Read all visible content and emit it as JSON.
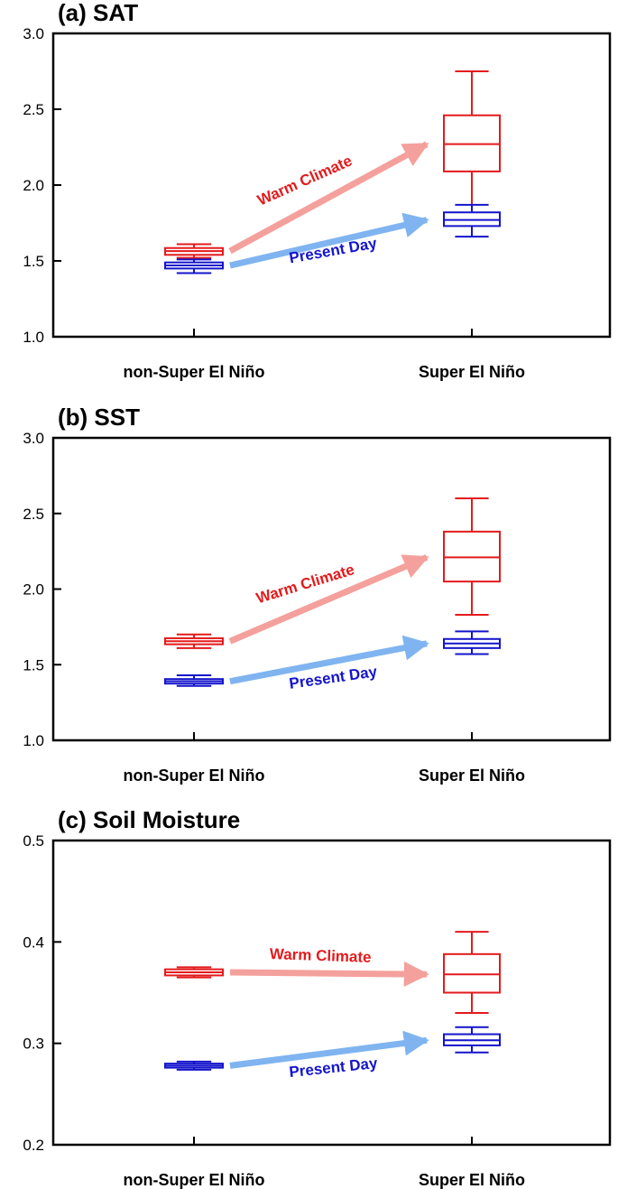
{
  "chart_data": [
    {
      "type": "box",
      "title": "(a)  SAT",
      "categories": [
        "non-Super El Niño",
        "Super El Niño"
      ],
      "ylim": [
        1.0,
        3.0
      ],
      "yticks": [
        "1.0",
        "1.5",
        "2.0",
        "2.5",
        "3.0"
      ],
      "series": [
        {
          "name": "Warm Climate",
          "color": "#e41a1c",
          "arrow_color": "#f4a09c",
          "boxes": [
            {
              "whisker_low": 1.52,
              "q1": 1.54,
              "median": 1.565,
              "q3": 1.585,
              "whisker_high": 1.61
            },
            {
              "whisker_low": 1.81,
              "q1": 2.09,
              "median": 2.27,
              "q3": 2.46,
              "whisker_high": 2.75
            }
          ]
        },
        {
          "name": "Present Day",
          "color": "#1414cc",
          "arrow_color": "#7fb4f0",
          "boxes": [
            {
              "whisker_low": 1.42,
              "q1": 1.45,
              "median": 1.47,
              "q3": 1.49,
              "whisker_high": 1.51
            },
            {
              "whisker_low": 1.66,
              "q1": 1.73,
              "median": 1.77,
              "q3": 1.82,
              "whisker_high": 1.87
            }
          ]
        }
      ]
    },
    {
      "type": "box",
      "title": "(b)  SST",
      "categories": [
        "non-Super El Niño",
        "Super El Niño"
      ],
      "ylim": [
        1.0,
        3.0
      ],
      "yticks": [
        "1.0",
        "1.5",
        "2.0",
        "2.5",
        "3.0"
      ],
      "series": [
        {
          "name": "Warm Climate",
          "color": "#e41a1c",
          "arrow_color": "#f4a09c",
          "boxes": [
            {
              "whisker_low": 1.61,
              "q1": 1.635,
              "median": 1.655,
              "q3": 1.675,
              "whisker_high": 1.7
            },
            {
              "whisker_low": 1.83,
              "q1": 2.05,
              "median": 2.21,
              "q3": 2.38,
              "whisker_high": 2.6
            }
          ]
        },
        {
          "name": "Present Day",
          "color": "#1414cc",
          "arrow_color": "#7fb4f0",
          "boxes": [
            {
              "whisker_low": 1.36,
              "q1": 1.375,
              "median": 1.39,
              "q3": 1.405,
              "whisker_high": 1.43
            },
            {
              "whisker_low": 1.57,
              "q1": 1.61,
              "median": 1.64,
              "q3": 1.67,
              "whisker_high": 1.72
            }
          ]
        }
      ]
    },
    {
      "type": "box",
      "title": "(c) Soil Moisture",
      "categories": [
        "non-Super El Niño",
        "Super El Niño"
      ],
      "ylim": [
        0.2,
        0.5
      ],
      "yticks": [
        "0.2",
        "0.3",
        "0.4",
        "0.5"
      ],
      "series": [
        {
          "name": "Warm Climate",
          "color": "#e41a1c",
          "arrow_color": "#f4a09c",
          "boxes": [
            {
              "whisker_low": 0.365,
              "q1": 0.367,
              "median": 0.37,
              "q3": 0.373,
              "whisker_high": 0.375
            },
            {
              "whisker_low": 0.33,
              "q1": 0.35,
              "median": 0.368,
              "q3": 0.388,
              "whisker_high": 0.41
            }
          ]
        },
        {
          "name": "Present Day",
          "color": "#1414cc",
          "arrow_color": "#7fb4f0",
          "boxes": [
            {
              "whisker_low": 0.274,
              "q1": 0.276,
              "median": 0.278,
              "q3": 0.28,
              "whisker_high": 0.282
            },
            {
              "whisker_low": 0.291,
              "q1": 0.298,
              "median": 0.303,
              "q3": 0.309,
              "whisker_high": 0.316
            }
          ]
        }
      ]
    }
  ],
  "colors": {
    "axis": "#000000"
  }
}
